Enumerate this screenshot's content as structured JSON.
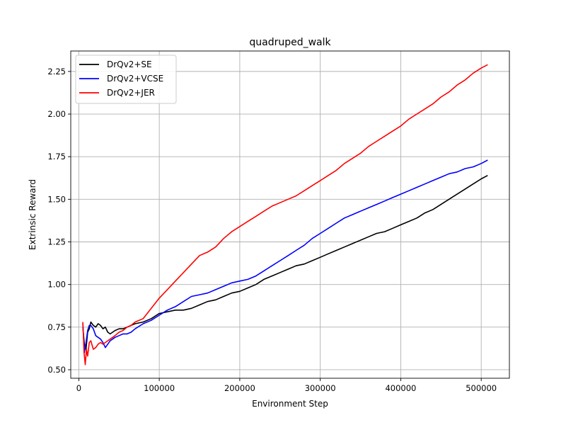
{
  "chart_data": {
    "type": "line",
    "title": "quadruped_walk",
    "xlabel": "Environment Step",
    "ylabel": "Extrinsic Reward",
    "xlim": [
      -10000,
      535000
    ],
    "ylim": [
      0.45,
      2.37
    ],
    "xticks": [
      0,
      100000,
      200000,
      300000,
      400000,
      500000
    ],
    "xtick_labels": [
      "0",
      "100000",
      "200000",
      "300000",
      "400000",
      "500000"
    ],
    "yticks": [
      0.5,
      0.75,
      1.0,
      1.25,
      1.5,
      1.75,
      2.0,
      2.25
    ],
    "ytick_labels": [
      "0.50",
      "0.75",
      "1.00",
      "1.25",
      "1.50",
      "1.75",
      "2.00",
      "2.25"
    ],
    "grid": true,
    "legend_position": "top-left",
    "series": [
      {
        "name": "DrQv2+SE",
        "color": "#000000",
        "x": [
          5000,
          7000,
          9000,
          11000,
          13000,
          15000,
          18000,
          21000,
          24000,
          27000,
          30000,
          33000,
          36000,
          39000,
          42000,
          45000,
          50000,
          55000,
          60000,
          65000,
          70000,
          80000,
          90000,
          100000,
          110000,
          120000,
          130000,
          140000,
          150000,
          160000,
          170000,
          180000,
          190000,
          200000,
          210000,
          220000,
          230000,
          240000,
          250000,
          260000,
          270000,
          280000,
          290000,
          300000,
          310000,
          320000,
          330000,
          340000,
          350000,
          360000,
          370000,
          380000,
          390000,
          400000,
          410000,
          420000,
          430000,
          440000,
          450000,
          460000,
          470000,
          480000,
          490000,
          500000,
          508000
        ],
        "y": [
          0.75,
          0.65,
          0.62,
          0.72,
          0.74,
          0.78,
          0.76,
          0.75,
          0.77,
          0.76,
          0.74,
          0.75,
          0.72,
          0.71,
          0.72,
          0.73,
          0.74,
          0.74,
          0.75,
          0.76,
          0.77,
          0.78,
          0.8,
          0.83,
          0.84,
          0.85,
          0.85,
          0.86,
          0.88,
          0.9,
          0.91,
          0.93,
          0.95,
          0.96,
          0.98,
          1.0,
          1.03,
          1.05,
          1.07,
          1.09,
          1.11,
          1.12,
          1.14,
          1.16,
          1.18,
          1.2,
          1.22,
          1.24,
          1.26,
          1.28,
          1.3,
          1.31,
          1.33,
          1.35,
          1.37,
          1.39,
          1.42,
          1.44,
          1.47,
          1.5,
          1.53,
          1.56,
          1.59,
          1.62,
          1.64
        ]
      },
      {
        "name": "DrQv2+VCSE",
        "color": "#0000ff",
        "x": [
          5000,
          7000,
          9000,
          11000,
          13000,
          15000,
          18000,
          21000,
          24000,
          27000,
          30000,
          33000,
          36000,
          39000,
          42000,
          45000,
          50000,
          55000,
          60000,
          65000,
          70000,
          80000,
          90000,
          100000,
          110000,
          120000,
          130000,
          140000,
          150000,
          160000,
          170000,
          180000,
          190000,
          200000,
          210000,
          220000,
          230000,
          240000,
          250000,
          260000,
          270000,
          280000,
          290000,
          300000,
          310000,
          320000,
          330000,
          340000,
          350000,
          360000,
          370000,
          380000,
          390000,
          400000,
          410000,
          420000,
          430000,
          440000,
          450000,
          460000,
          470000,
          480000,
          490000,
          500000,
          508000
        ],
        "y": [
          0.77,
          0.6,
          0.66,
          0.73,
          0.76,
          0.76,
          0.74,
          0.7,
          0.69,
          0.68,
          0.66,
          0.63,
          0.65,
          0.67,
          0.68,
          0.69,
          0.7,
          0.71,
          0.71,
          0.72,
          0.74,
          0.77,
          0.79,
          0.82,
          0.85,
          0.87,
          0.9,
          0.93,
          0.94,
          0.95,
          0.97,
          0.99,
          1.01,
          1.02,
          1.03,
          1.05,
          1.08,
          1.11,
          1.14,
          1.17,
          1.2,
          1.23,
          1.27,
          1.3,
          1.33,
          1.36,
          1.39,
          1.41,
          1.43,
          1.45,
          1.47,
          1.49,
          1.51,
          1.53,
          1.55,
          1.57,
          1.59,
          1.61,
          1.63,
          1.65,
          1.66,
          1.68,
          1.69,
          1.71,
          1.73
        ]
      },
      {
        "name": "DrQv2+JER",
        "color": "#ff0000",
        "x": [
          5000,
          6500,
          8000,
          9500,
          11000,
          13000,
          15000,
          18000,
          21000,
          24000,
          27000,
          30000,
          33000,
          36000,
          39000,
          42000,
          45000,
          50000,
          55000,
          60000,
          65000,
          70000,
          80000,
          90000,
          100000,
          110000,
          120000,
          130000,
          140000,
          150000,
          160000,
          170000,
          180000,
          190000,
          200000,
          210000,
          220000,
          230000,
          240000,
          250000,
          260000,
          270000,
          280000,
          290000,
          300000,
          310000,
          320000,
          330000,
          340000,
          350000,
          360000,
          370000,
          380000,
          390000,
          400000,
          410000,
          420000,
          430000,
          440000,
          450000,
          460000,
          470000,
          480000,
          490000,
          500000,
          508000
        ],
        "y": [
          0.78,
          0.6,
          0.53,
          0.62,
          0.58,
          0.66,
          0.67,
          0.62,
          0.63,
          0.65,
          0.66,
          0.65,
          0.66,
          0.67,
          0.68,
          0.69,
          0.7,
          0.72,
          0.73,
          0.75,
          0.76,
          0.78,
          0.8,
          0.86,
          0.92,
          0.97,
          1.02,
          1.07,
          1.12,
          1.17,
          1.19,
          1.22,
          1.27,
          1.31,
          1.34,
          1.37,
          1.4,
          1.43,
          1.46,
          1.48,
          1.5,
          1.52,
          1.55,
          1.58,
          1.61,
          1.64,
          1.67,
          1.71,
          1.74,
          1.77,
          1.81,
          1.84,
          1.87,
          1.9,
          1.93,
          1.97,
          2.0,
          2.03,
          2.06,
          2.1,
          2.13,
          2.17,
          2.2,
          2.24,
          2.27,
          2.29
        ]
      }
    ]
  }
}
